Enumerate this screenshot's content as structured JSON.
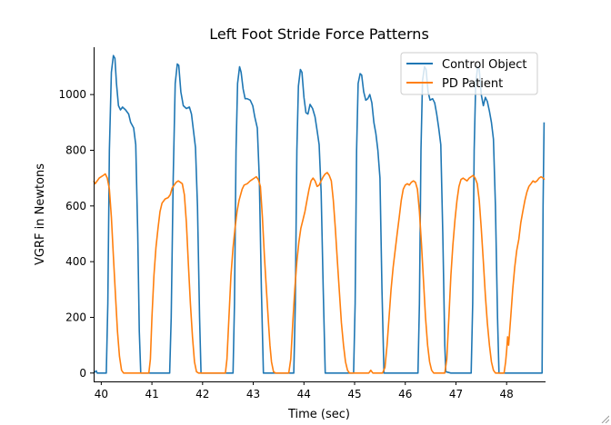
{
  "chart_data": {
    "type": "line",
    "title": "Left Foot Stride Force Patterns",
    "xlabel": "Time (sec)",
    "ylabel": "VGRF in Newtons",
    "xlim": [
      39.85,
      48.75
    ],
    "ylim": [
      -30,
      1170
    ],
    "xticks": [
      40,
      41,
      42,
      43,
      44,
      45,
      46,
      47,
      48
    ],
    "yticks": [
      0,
      200,
      400,
      600,
      800,
      1000
    ],
    "grid": false,
    "legend_position": "top-right",
    "series": [
      {
        "name": "Control Object",
        "color": "#1f77b4",
        "points": [
          [
            39.85,
            0
          ],
          [
            39.88,
            5
          ],
          [
            39.9,
            8
          ],
          [
            39.92,
            0
          ],
          [
            40.1,
            0
          ],
          [
            40.13,
            250
          ],
          [
            40.16,
            800
          ],
          [
            40.2,
            1080
          ],
          [
            40.24,
            1140
          ],
          [
            40.27,
            1130
          ],
          [
            40.3,
            1040
          ],
          [
            40.34,
            960
          ],
          [
            40.38,
            945
          ],
          [
            40.42,
            955
          ],
          [
            40.48,
            945
          ],
          [
            40.54,
            930
          ],
          [
            40.58,
            900
          ],
          [
            40.64,
            880
          ],
          [
            40.68,
            820
          ],
          [
            40.72,
            500
          ],
          [
            40.75,
            150
          ],
          [
            40.78,
            0
          ],
          [
            41.35,
            0
          ],
          [
            41.38,
            200
          ],
          [
            41.42,
            700
          ],
          [
            41.46,
            1040
          ],
          [
            41.5,
            1110
          ],
          [
            41.53,
            1105
          ],
          [
            41.57,
            1010
          ],
          [
            41.62,
            960
          ],
          [
            41.68,
            950
          ],
          [
            41.74,
            955
          ],
          [
            41.78,
            930
          ],
          [
            41.82,
            870
          ],
          [
            41.86,
            810
          ],
          [
            41.9,
            600
          ],
          [
            41.94,
            200
          ],
          [
            41.97,
            0
          ],
          [
            42.6,
            0
          ],
          [
            42.63,
            250
          ],
          [
            42.66,
            800
          ],
          [
            42.69,
            1040
          ],
          [
            42.73,
            1100
          ],
          [
            42.76,
            1080
          ],
          [
            42.8,
            1020
          ],
          [
            42.84,
            985
          ],
          [
            42.88,
            985
          ],
          [
            42.94,
            980
          ],
          [
            42.99,
            960
          ],
          [
            43.03,
            920
          ],
          [
            43.08,
            880
          ],
          [
            43.12,
            700
          ],
          [
            43.16,
            300
          ],
          [
            43.2,
            0
          ],
          [
            43.8,
            0
          ],
          [
            43.83,
            250
          ],
          [
            43.86,
            800
          ],
          [
            43.89,
            1030
          ],
          [
            43.93,
            1090
          ],
          [
            43.96,
            1080
          ],
          [
            44.0,
            990
          ],
          [
            44.04,
            935
          ],
          [
            44.08,
            930
          ],
          [
            44.12,
            965
          ],
          [
            44.17,
            950
          ],
          [
            44.22,
            920
          ],
          [
            44.26,
            870
          ],
          [
            44.3,
            820
          ],
          [
            44.34,
            650
          ],
          [
            44.38,
            300
          ],
          [
            44.42,
            0
          ],
          [
            44.98,
            0
          ],
          [
            45.01,
            250
          ],
          [
            45.04,
            800
          ],
          [
            45.07,
            1040
          ],
          [
            45.11,
            1075
          ],
          [
            45.14,
            1070
          ],
          [
            45.18,
            1010
          ],
          [
            45.22,
            980
          ],
          [
            45.26,
            985
          ],
          [
            45.3,
            1000
          ],
          [
            45.34,
            970
          ],
          [
            45.38,
            900
          ],
          [
            45.42,
            860
          ],
          [
            45.46,
            800
          ],
          [
            45.5,
            700
          ],
          [
            45.54,
            300
          ],
          [
            45.58,
            0
          ],
          [
            46.25,
            0
          ],
          [
            46.28,
            250
          ],
          [
            46.31,
            800
          ],
          [
            46.34,
            1050
          ],
          [
            46.38,
            1100
          ],
          [
            46.41,
            1090
          ],
          [
            46.45,
            1010
          ],
          [
            46.49,
            980
          ],
          [
            46.54,
            985
          ],
          [
            46.58,
            970
          ],
          [
            46.62,
            930
          ],
          [
            46.66,
            880
          ],
          [
            46.7,
            820
          ],
          [
            46.74,
            500
          ],
          [
            46.78,
            100
          ],
          [
            46.8,
            5
          ],
          [
            46.9,
            0
          ],
          [
            47.0,
            0
          ],
          [
            47.3,
            0
          ],
          [
            47.33,
            250
          ],
          [
            47.36,
            800
          ],
          [
            47.39,
            1040
          ],
          [
            47.43,
            1100
          ],
          [
            47.46,
            1090
          ],
          [
            47.5,
            1000
          ],
          [
            47.54,
            960
          ],
          [
            47.58,
            990
          ],
          [
            47.62,
            975
          ],
          [
            47.66,
            940
          ],
          [
            47.7,
            900
          ],
          [
            47.74,
            840
          ],
          [
            47.78,
            600
          ],
          [
            47.82,
            200
          ],
          [
            47.85,
            0
          ],
          [
            48.7,
            0
          ],
          [
            48.72,
            600
          ],
          [
            48.74,
            900
          ]
        ]
      },
      {
        "name": "PD Patient",
        "color": "#ff7f0e",
        "points": [
          [
            39.85,
            690
          ],
          [
            39.88,
            680
          ],
          [
            39.92,
            690
          ],
          [
            39.96,
            700
          ],
          [
            40.0,
            705
          ],
          [
            40.04,
            710
          ],
          [
            40.08,
            715
          ],
          [
            40.12,
            700
          ],
          [
            40.16,
            660
          ],
          [
            40.2,
            560
          ],
          [
            40.24,
            420
          ],
          [
            40.28,
            280
          ],
          [
            40.32,
            150
          ],
          [
            40.36,
            60
          ],
          [
            40.4,
            10
          ],
          [
            40.44,
            0
          ],
          [
            40.94,
            0
          ],
          [
            40.97,
            50
          ],
          [
            41.0,
            200
          ],
          [
            41.04,
            350
          ],
          [
            41.08,
            450
          ],
          [
            41.12,
            520
          ],
          [
            41.16,
            580
          ],
          [
            41.2,
            610
          ],
          [
            41.26,
            625
          ],
          [
            41.32,
            630
          ],
          [
            41.36,
            640
          ],
          [
            41.4,
            665
          ],
          [
            41.44,
            675
          ],
          [
            41.48,
            685
          ],
          [
            41.52,
            690
          ],
          [
            41.56,
            685
          ],
          [
            41.6,
            680
          ],
          [
            41.64,
            640
          ],
          [
            41.68,
            540
          ],
          [
            41.72,
            390
          ],
          [
            41.76,
            250
          ],
          [
            41.8,
            130
          ],
          [
            41.84,
            40
          ],
          [
            41.88,
            5
          ],
          [
            41.92,
            0
          ],
          [
            42.45,
            0
          ],
          [
            42.48,
            50
          ],
          [
            42.52,
            200
          ],
          [
            42.56,
            350
          ],
          [
            42.6,
            450
          ],
          [
            42.64,
            520
          ],
          [
            42.68,
            580
          ],
          [
            42.72,
            620
          ],
          [
            42.78,
            660
          ],
          [
            42.82,
            675
          ],
          [
            42.88,
            680
          ],
          [
            42.94,
            690
          ],
          [
            42.98,
            695
          ],
          [
            43.02,
            700
          ],
          [
            43.06,
            705
          ],
          [
            43.1,
            695
          ],
          [
            43.14,
            670
          ],
          [
            43.18,
            560
          ],
          [
            43.22,
            420
          ],
          [
            43.26,
            300
          ],
          [
            43.3,
            180
          ],
          [
            43.33,
            100
          ],
          [
            43.36,
            40
          ],
          [
            43.4,
            5
          ],
          [
            43.44,
            0
          ],
          [
            43.7,
            0
          ],
          [
            43.74,
            50
          ],
          [
            43.78,
            180
          ],
          [
            43.82,
            300
          ],
          [
            43.86,
            400
          ],
          [
            43.9,
            470
          ],
          [
            43.94,
            520
          ],
          [
            43.98,
            550
          ],
          [
            44.02,
            580
          ],
          [
            44.06,
            620
          ],
          [
            44.1,
            660
          ],
          [
            44.14,
            690
          ],
          [
            44.18,
            700
          ],
          [
            44.22,
            690
          ],
          [
            44.26,
            670
          ],
          [
            44.3,
            675
          ],
          [
            44.34,
            690
          ],
          [
            44.38,
            705
          ],
          [
            44.42,
            715
          ],
          [
            44.46,
            720
          ],
          [
            44.5,
            710
          ],
          [
            44.54,
            690
          ],
          [
            44.58,
            620
          ],
          [
            44.62,
            520
          ],
          [
            44.66,
            400
          ],
          [
            44.7,
            290
          ],
          [
            44.74,
            180
          ],
          [
            44.78,
            100
          ],
          [
            44.82,
            40
          ],
          [
            44.86,
            10
          ],
          [
            44.9,
            0
          ],
          [
            45.28,
            0
          ],
          [
            45.32,
            10
          ],
          [
            45.36,
            0
          ],
          [
            45.55,
            0
          ],
          [
            45.6,
            20
          ],
          [
            45.64,
            100
          ],
          [
            45.68,
            200
          ],
          [
            45.72,
            300
          ],
          [
            45.76,
            380
          ],
          [
            45.8,
            440
          ],
          [
            45.84,
            500
          ],
          [
            45.88,
            560
          ],
          [
            45.92,
            620
          ],
          [
            45.96,
            660
          ],
          [
            46.0,
            675
          ],
          [
            46.04,
            680
          ],
          [
            46.08,
            675
          ],
          [
            46.12,
            685
          ],
          [
            46.16,
            690
          ],
          [
            46.2,
            685
          ],
          [
            46.24,
            660
          ],
          [
            46.28,
            580
          ],
          [
            46.32,
            460
          ],
          [
            46.36,
            330
          ],
          [
            46.4,
            200
          ],
          [
            46.44,
            100
          ],
          [
            46.48,
            40
          ],
          [
            46.52,
            10
          ],
          [
            46.56,
            0
          ],
          [
            46.78,
            0
          ],
          [
            46.82,
            50
          ],
          [
            46.86,
            200
          ],
          [
            46.9,
            350
          ],
          [
            46.94,
            460
          ],
          [
            46.98,
            550
          ],
          [
            47.02,
            620
          ],
          [
            47.06,
            670
          ],
          [
            47.1,
            695
          ],
          [
            47.14,
            700
          ],
          [
            47.18,
            695
          ],
          [
            47.22,
            690
          ],
          [
            47.26,
            700
          ],
          [
            47.3,
            705
          ],
          [
            47.34,
            710
          ],
          [
            47.38,
            700
          ],
          [
            47.42,
            680
          ],
          [
            47.46,
            620
          ],
          [
            47.5,
            520
          ],
          [
            47.54,
            400
          ],
          [
            47.58,
            280
          ],
          [
            47.62,
            180
          ],
          [
            47.66,
            100
          ],
          [
            47.7,
            40
          ],
          [
            47.74,
            10
          ],
          [
            47.78,
            0
          ],
          [
            47.95,
            0
          ],
          [
            47.98,
            40
          ],
          [
            48.0,
            80
          ],
          [
            48.02,
            130
          ],
          [
            48.04,
            100
          ],
          [
            48.08,
            200
          ],
          [
            48.12,
            300
          ],
          [
            48.16,
            380
          ],
          [
            48.2,
            440
          ],
          [
            48.24,
            480
          ],
          [
            48.28,
            540
          ],
          [
            48.32,
            580
          ],
          [
            48.36,
            620
          ],
          [
            48.4,
            650
          ],
          [
            48.44,
            670
          ],
          [
            48.48,
            680
          ],
          [
            48.52,
            690
          ],
          [
            48.56,
            685
          ],
          [
            48.6,
            690
          ],
          [
            48.64,
            700
          ],
          [
            48.68,
            705
          ],
          [
            48.72,
            700
          ],
          [
            48.75,
            695
          ]
        ]
      }
    ]
  }
}
